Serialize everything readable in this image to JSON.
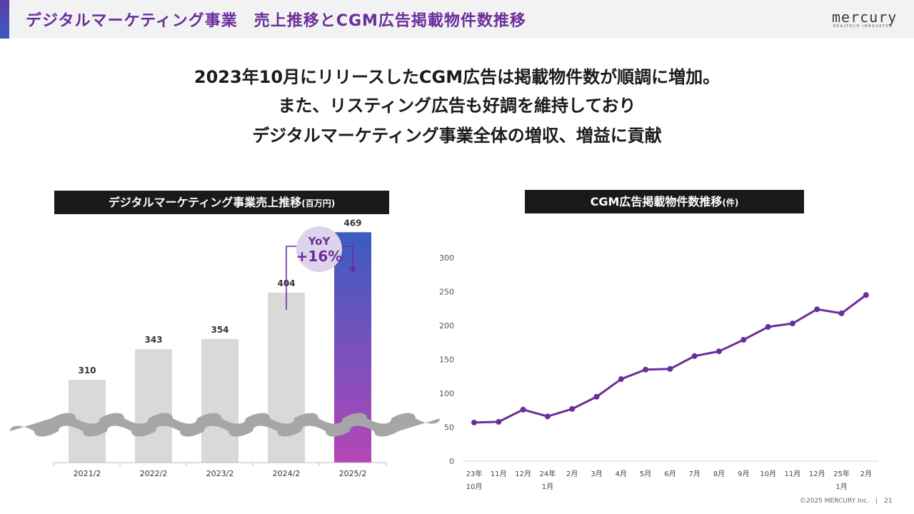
{
  "header": {
    "title": "デジタルマーケティング事業　売上推移とCGM広告掲載物件数推移",
    "logo_word": "mercury",
    "logo_sub": "REALTECH INNOVATOR"
  },
  "message": {
    "line1": "2023年10月にリリースしたCGM広告は掲載物件数が順調に増加。",
    "line2": "また、リスティング広告も好調を維持しており",
    "line3": "デジタルマーケティング事業全体の増収、増益に貢献"
  },
  "bar_panel": {
    "title": "デジタルマーケティング事業売上推移",
    "unit": "(百万円)"
  },
  "line_panel": {
    "title": "CGM広告掲載物件数推移",
    "unit": "(件)"
  },
  "yoy": {
    "label": "YoY",
    "value": "+16%"
  },
  "colors": {
    "accent": "#6a2e9c",
    "line": "#6a2e9c",
    "bar_gray": "#d9d9d9",
    "bar_highlight_top": "#3a5cc0",
    "bar_highlight_bottom": "#b446b8"
  },
  "chart_data": [
    {
      "type": "bar",
      "title": "デジタルマーケティング事業売上推移(百万円)",
      "categories": [
        "2021/2",
        "2022/2",
        "2023/2",
        "2024/2",
        "2025/2"
      ],
      "values": [
        310,
        343,
        354,
        404,
        469
      ],
      "value_labels": [
        "310",
        "343",
        "354",
        "404",
        "469"
      ],
      "axis_break": true,
      "highlight_index": 4
    },
    {
      "type": "line",
      "title": "CGM広告掲載物件数推移(件)",
      "x_labels": [
        [
          "23年",
          "10月"
        ],
        [
          "11月"
        ],
        [
          "12月"
        ],
        [
          "24年",
          "1月"
        ],
        [
          "2月"
        ],
        [
          "3月"
        ],
        [
          "4月"
        ],
        [
          "5月"
        ],
        [
          "6月"
        ],
        [
          "7月"
        ],
        [
          "8月"
        ],
        [
          "9月"
        ],
        [
          "10月"
        ],
        [
          "11月"
        ],
        [
          "12月"
        ],
        [
          "25年",
          "1月"
        ],
        [
          "2月"
        ]
      ],
      "values": [
        57,
        58,
        76,
        66,
        77,
        95,
        121,
        135,
        136,
        155,
        162,
        179,
        198,
        203,
        224,
        218,
        245
      ],
      "ylim": [
        0,
        300
      ],
      "yticks": [
        "0",
        "50",
        "100",
        "150",
        "200",
        "250",
        "300"
      ],
      "grid": false
    }
  ],
  "footer": "©2025 MERCURY Inc.　|　21"
}
